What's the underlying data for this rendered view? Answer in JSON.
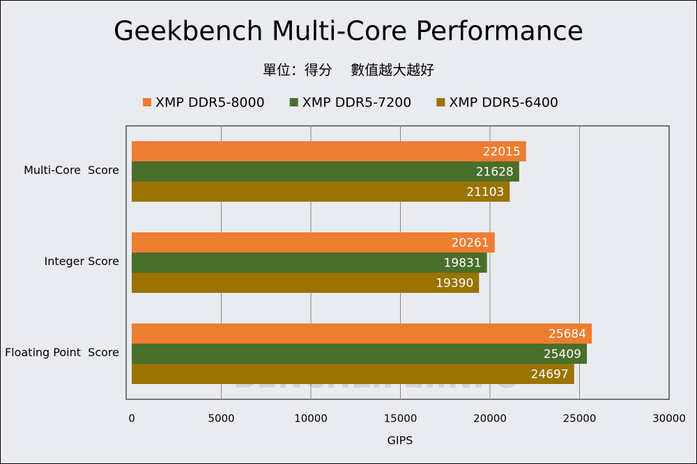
{
  "chart_data": {
    "type": "bar",
    "orientation": "horizontal",
    "title": "Geekbench Multi-Core Performance",
    "subtitle": "單位：得分　 數值越大越好",
    "watermark": "BENCHLIFE.INFO",
    "categories": [
      "Multi-Core  Score",
      "Integer Score",
      "Floating Point  Score"
    ],
    "series": [
      {
        "name": "XMP DDR5-8000",
        "color": "#ed7d31",
        "values": [
          22015,
          20261,
          25684
        ]
      },
      {
        "name": "XMP DDR5-7200",
        "color": "#4a6f2b",
        "values": [
          21628,
          19831,
          25409
        ]
      },
      {
        "name": "XMP DDR5-6400",
        "color": "#9a7300",
        "values": [
          21103,
          19390,
          24697
        ]
      }
    ],
    "xlim": [
      0,
      30000
    ],
    "xticks": [
      0,
      5000,
      10000,
      15000,
      20000,
      25000,
      30000
    ],
    "xlabel": "GIPS",
    "grid": true,
    "legend": "top"
  }
}
